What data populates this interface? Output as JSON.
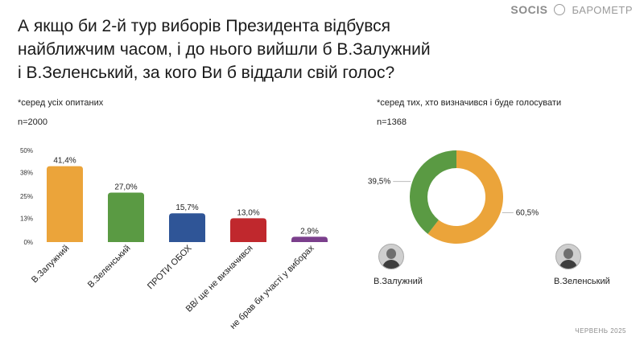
{
  "brand": {
    "logo": "SOCIS",
    "name": "БАРОМЕТР"
  },
  "title_lines": [
    "А якщо би 2-й тур виборів Президента відбувся",
    "найближчим часом, і до нього вийшли б В.Залужний",
    "і В.Зеленський, за кого Ви б віддали свій голос?"
  ],
  "left_panel": {
    "note": "*серед усіх опитаних",
    "n": "n=2000"
  },
  "right_panel": {
    "note": "*серед тих, хто визначився і буде голосувати",
    "n": "n=1368"
  },
  "candidates": [
    {
      "name": "В.Залужний",
      "avatar_icon": "person-photo-icon"
    },
    {
      "name": "В.Зеленський",
      "avatar_icon": "person-photo-icon"
    }
  ],
  "footer": "ЧЕРВЕНЬ 2025",
  "chart_data": [
    {
      "type": "bar",
      "categories": [
        "В.Залужний",
        "В.Зеленський",
        "ПРОТИ ОБОХ",
        "ВВ/ ще не визначився",
        "не брав би участі у виборах"
      ],
      "values": [
        41.4,
        27.0,
        15.7,
        13.0,
        2.9
      ],
      "value_labels": [
        "41,4%",
        "27,0%",
        "15,7%",
        "13,0%",
        "2,9%"
      ],
      "colors": [
        "#EBA43A",
        "#5A9A43",
        "#2F5597",
        "#C0282D",
        "#7B3F8C"
      ],
      "ylim": [
        0,
        50
      ],
      "yticks": [
        0,
        13,
        25,
        38,
        50
      ],
      "ytick_labels": [
        "0%",
        "13%",
        "25%",
        "38%",
        "50%"
      ],
      "grid": false
    },
    {
      "type": "pie",
      "style": "donut",
      "labels": [
        "В.Залужний",
        "В.Зеленський"
      ],
      "values": [
        60.5,
        39.5
      ],
      "value_labels": [
        "60,5%",
        "39,5%"
      ],
      "colors": [
        "#EBA43A",
        "#5A9A43"
      ]
    }
  ]
}
